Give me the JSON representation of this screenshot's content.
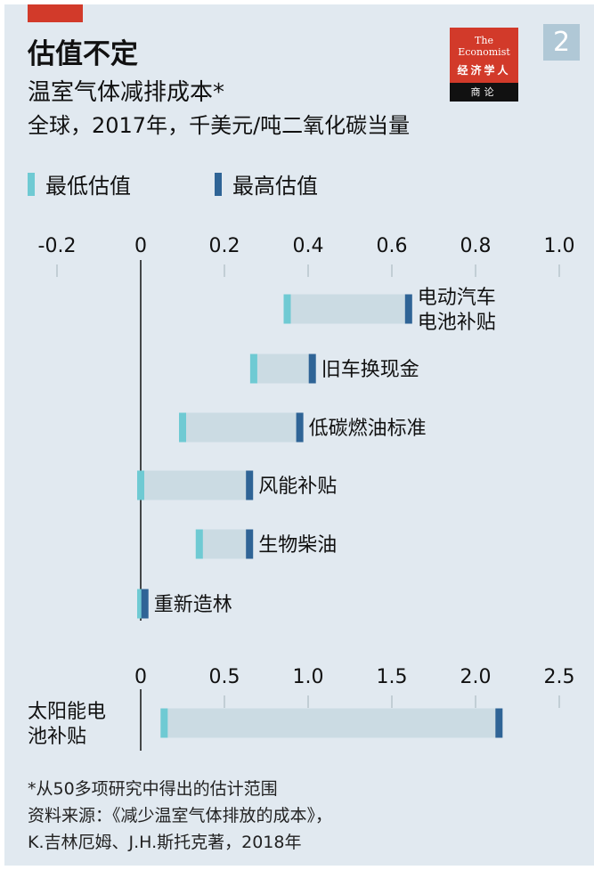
{
  "header": {
    "title": "估值不定",
    "subtitle": "温室气体减排成本*",
    "units": "全球，2017年，千美元/吨二氧化碳当量",
    "page_number": "2"
  },
  "logo": {
    "line1": "The",
    "line2": "Economist",
    "line3": "经济学人",
    "line4": "商论"
  },
  "legend": {
    "low": "最低估值",
    "high": "最高估值"
  },
  "colors": {
    "background": "#e1e9f0",
    "low": "#6fcad3",
    "high": "#2f6496",
    "range": "#cbdbe3",
    "brand": "#d23a2a"
  },
  "chart_data": [
    {
      "type": "bar",
      "subtype": "range",
      "title": "温室气体减排成本*",
      "xlim": [
        -0.2,
        1.0
      ],
      "ticks": [
        "-0.2",
        "0",
        "0.2",
        "0.4",
        "0.6",
        "0.8",
        "1.0"
      ],
      "tick_values": [
        -0.2,
        0,
        0.2,
        0.4,
        0.6,
        0.8,
        1.0
      ],
      "categories": [
        [
          "电动汽车",
          "电池补贴"
        ],
        [
          "旧车换现金"
        ],
        [
          "低碳燃油标准"
        ],
        [
          "风能补贴"
        ],
        [
          "生物柴油"
        ],
        [
          "重新造林"
        ]
      ],
      "series": [
        {
          "name": "最低估值",
          "values": [
            0.35,
            0.27,
            0.1,
            0.0,
            0.14,
            0.0
          ]
        },
        {
          "name": "最高估值",
          "values": [
            0.64,
            0.41,
            0.38,
            0.26,
            0.26,
            0.01
          ]
        }
      ]
    },
    {
      "type": "bar",
      "subtype": "range",
      "xlim": [
        0,
        2.5
      ],
      "ticks": [
        "0",
        "0.5",
        "1.0",
        "1.5",
        "2.0",
        "2.5"
      ],
      "tick_values": [
        0,
        0.5,
        1.0,
        1.5,
        2.0,
        2.5
      ],
      "categories": [
        [
          "太阳能电",
          "池补贴"
        ]
      ],
      "series": [
        {
          "name": "最低估值",
          "values": [
            0.14
          ]
        },
        {
          "name": "最高估值",
          "values": [
            2.14
          ]
        }
      ]
    }
  ],
  "footnote": {
    "note": "*从50多项研究中得出的估计范围",
    "source": "资料来源：《减少温室气体排放的成本》，",
    "authors": "K.吉林厄姆、J.H.斯托克著，2018年"
  }
}
